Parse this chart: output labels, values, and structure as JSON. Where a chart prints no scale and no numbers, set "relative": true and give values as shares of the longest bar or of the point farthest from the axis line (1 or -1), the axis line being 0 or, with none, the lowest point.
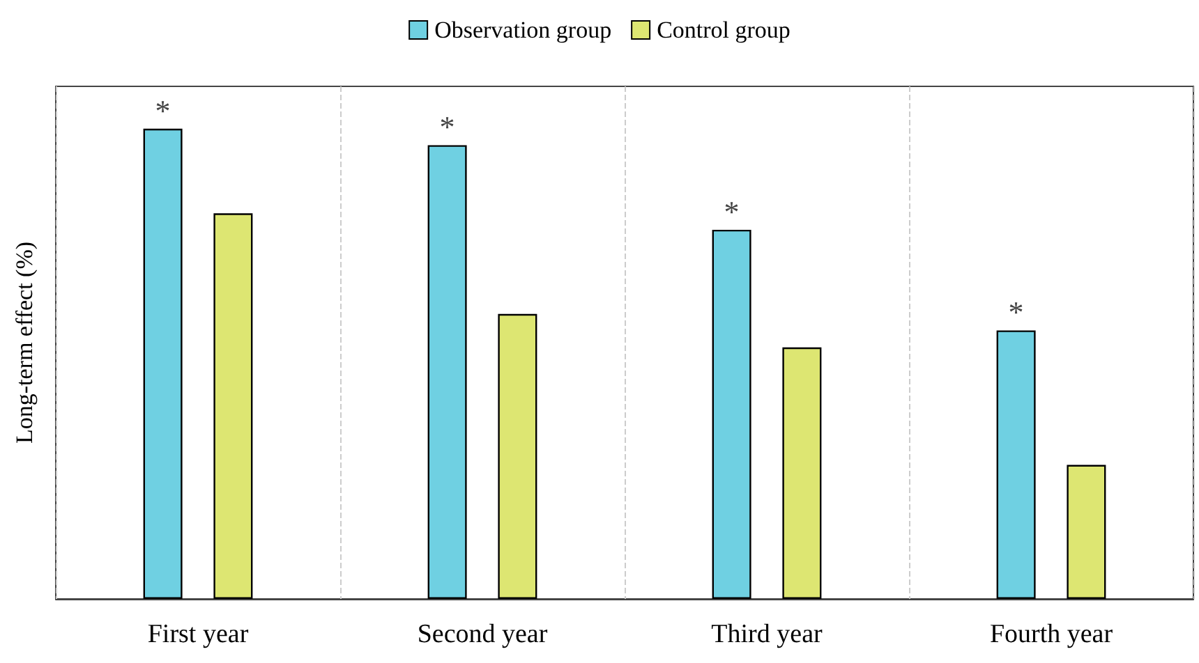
{
  "chart_data": {
    "type": "bar",
    "ylabel": "Long-term effect (%)",
    "relative": true,
    "categories": [
      "First year",
      "Second year",
      "Third year",
      "Fourth year"
    ],
    "series": [
      {
        "name": "Observation group",
        "color": "#6fd0e2",
        "values": [
          1,
          0.965,
          0.785,
          0.571
        ]
      },
      {
        "name": "Control group",
        "color": "#dde672",
        "values": [
          0.82,
          0.606,
          0.535,
          0.285
        ]
      }
    ],
    "annotations": [
      "*",
      "*",
      "*",
      "*"
    ],
    "grid": "x",
    "legend": "top"
  }
}
